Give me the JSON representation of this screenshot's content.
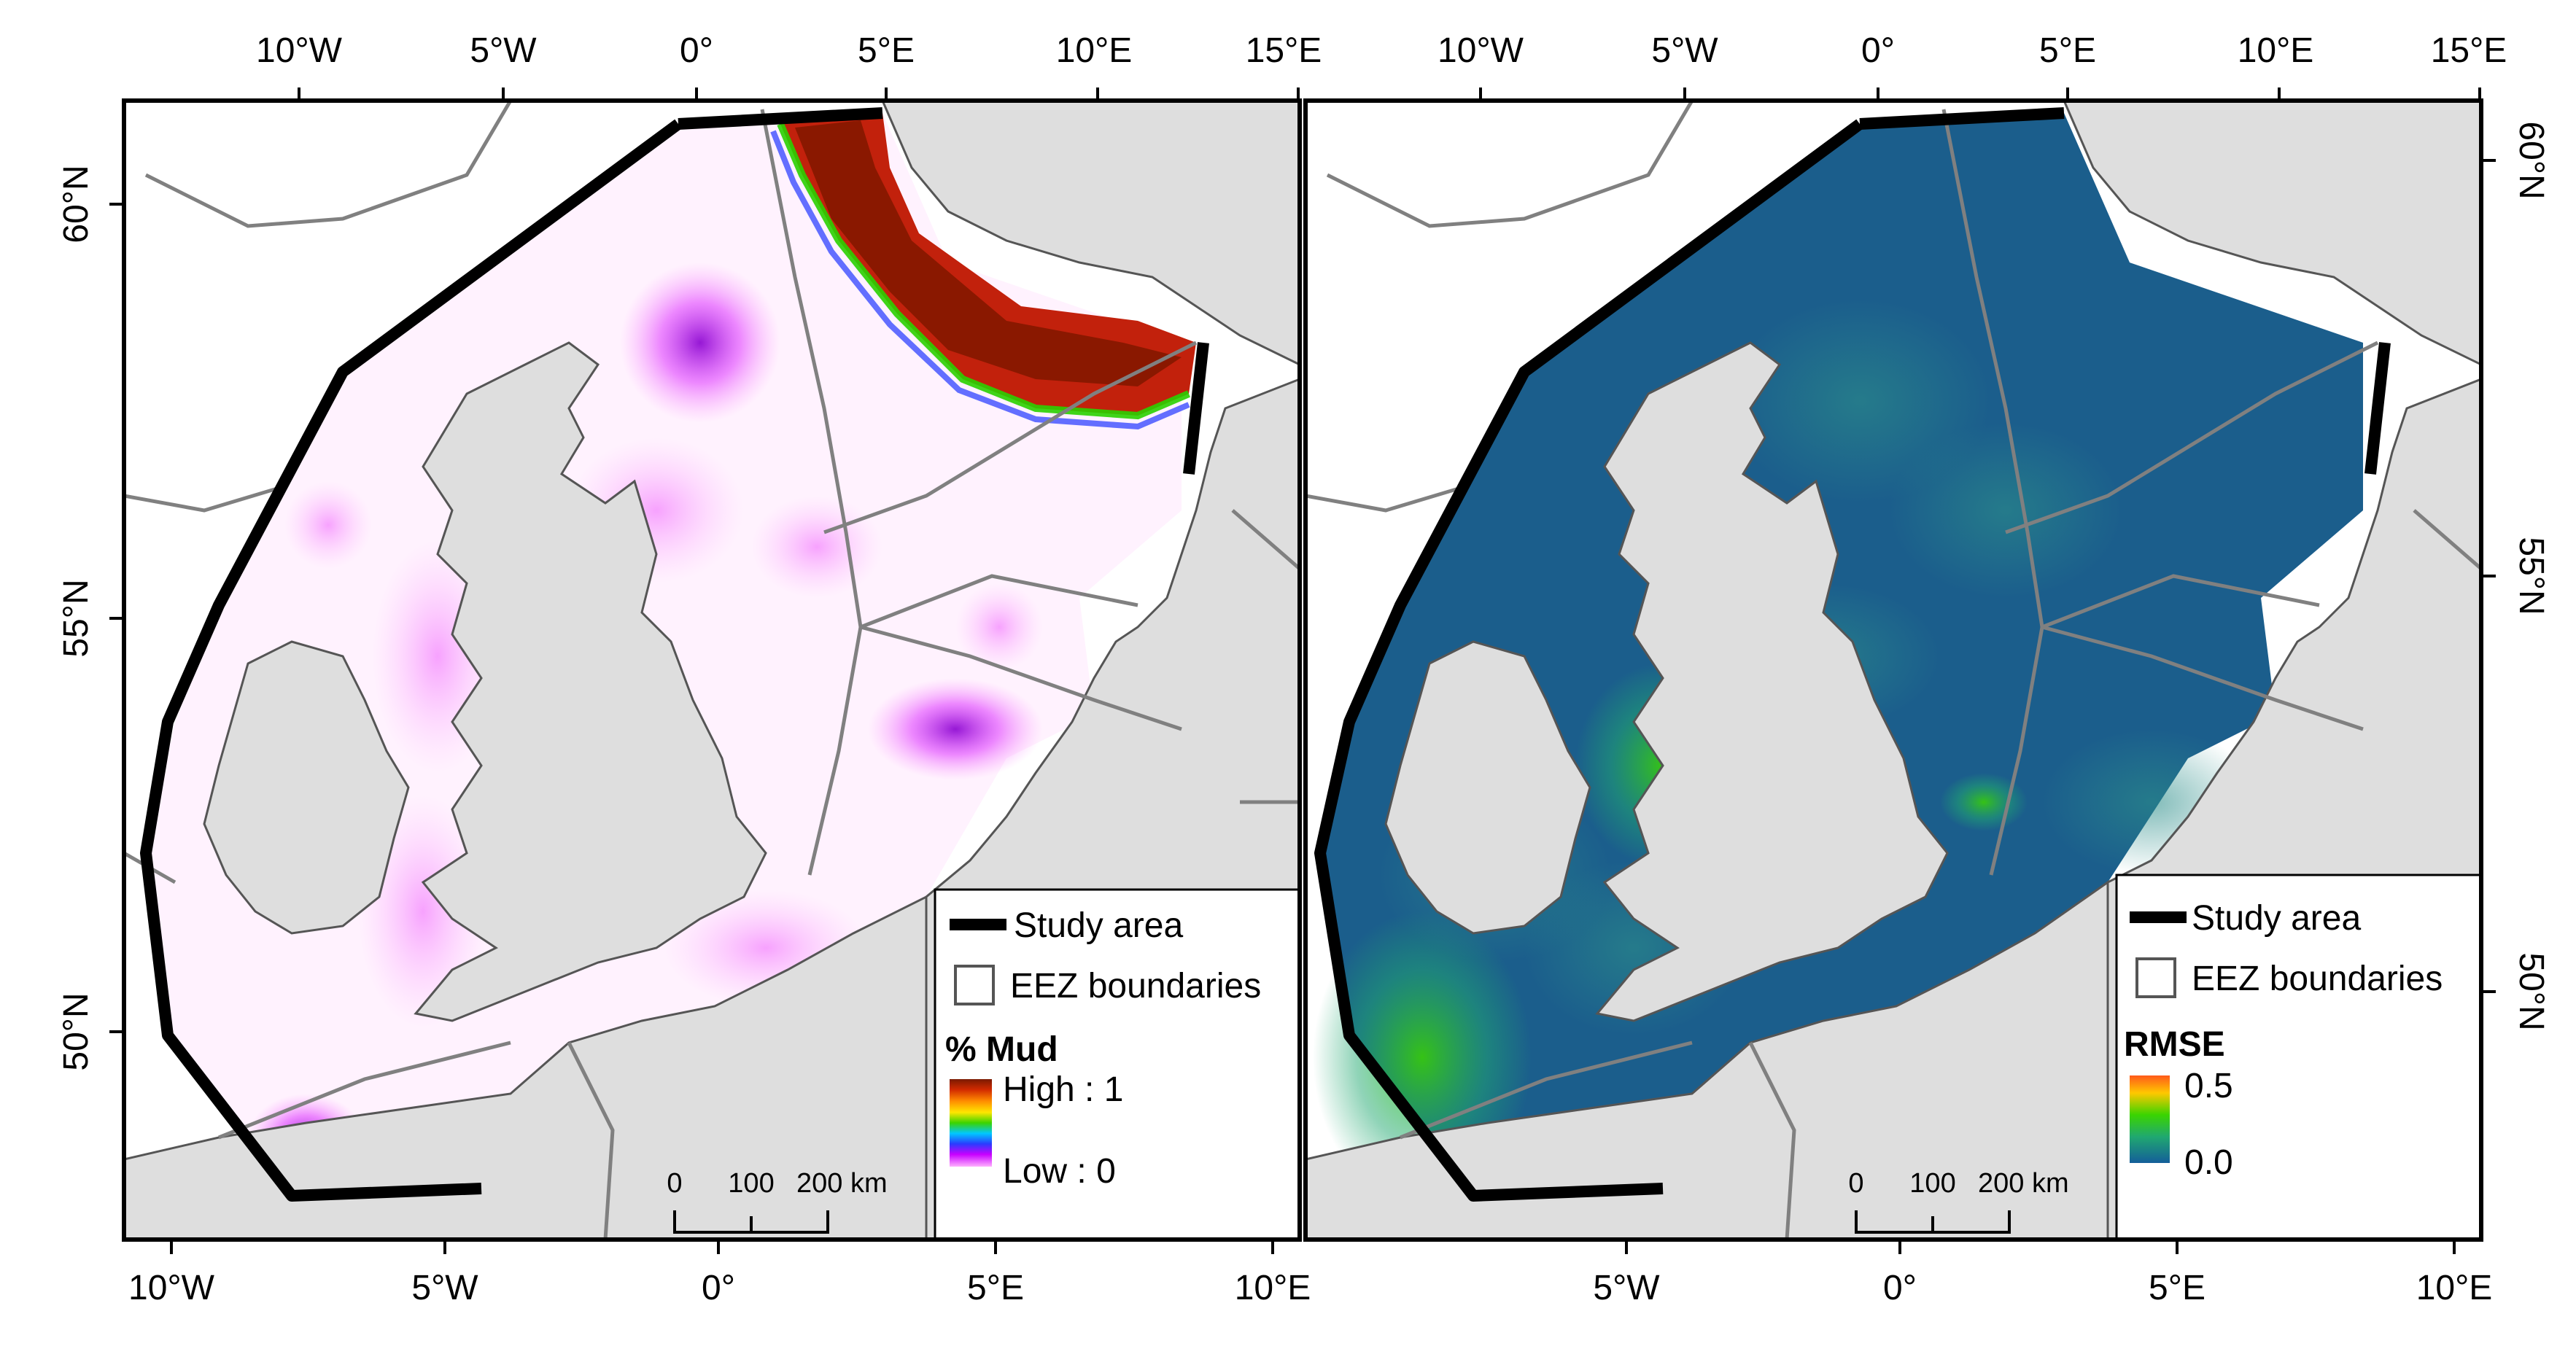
{
  "panels": [
    {
      "id": "mud",
      "top_ticks": [
        "10°W",
        "5°W",
        "0°",
        "5°E",
        "10°E",
        "15°E"
      ],
      "bottom_ticks": [
        "10°W",
        "5°W",
        "0°",
        "5°E",
        "10°E"
      ],
      "lat_ticks": [
        "60°N",
        "55°N",
        "50°N"
      ],
      "legend": {
        "study_area": "Study area",
        "eez": "EEZ boundaries",
        "title": "% Mud",
        "high": "High : 1",
        "low": "Low : 0",
        "colors": [
          "#7a1a00",
          "#d22a00",
          "#ff8c00",
          "#ffe600",
          "#3bd400",
          "#00c8ff",
          "#2a3cff",
          "#c800ff",
          "#ffb0ff"
        ]
      },
      "scale": {
        "labels": [
          "0",
          "100",
          "200 km"
        ]
      }
    },
    {
      "id": "rmse",
      "top_ticks": [
        "10°W",
        "5°W",
        "0°",
        "5°E",
        "10°E",
        "15°E"
      ],
      "bottom_ticks": [
        "5°W",
        "0°",
        "5°E",
        "10°E"
      ],
      "lat_ticks": [
        "60°N",
        "55°N",
        "50°N"
      ],
      "legend": {
        "study_area": "Study area",
        "eez": "EEZ boundaries",
        "title": "RMSE",
        "high": "0.5",
        "low": "0.0",
        "colors": [
          "#ff5a1a",
          "#ffc800",
          "#3ad400",
          "#20a870",
          "#145e9a"
        ]
      },
      "scale": {
        "labels": [
          "0",
          "100",
          "200 km"
        ]
      }
    }
  ],
  "colors": {
    "land": "#dedede",
    "coast": "#555555",
    "eez": "#808080",
    "study_boundary": "#000000",
    "mud_sea": "#fff4ff",
    "rmse_sea": "#1b5e8c"
  }
}
